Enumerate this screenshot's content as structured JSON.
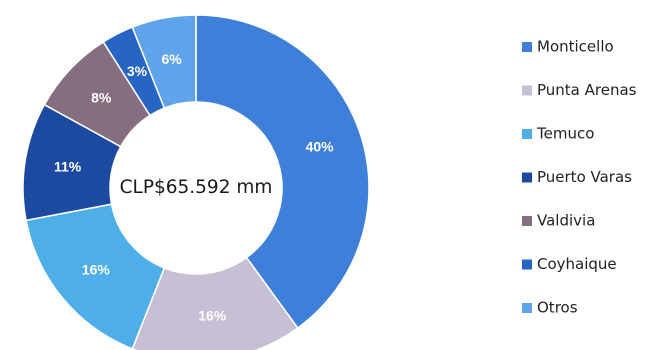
{
  "chart_data": {
    "type": "pie",
    "donut": true,
    "center_label": "CLP$65.592 mm",
    "legend_position": "right",
    "slices": [
      {
        "label": "Monticello",
        "value": 40,
        "value_label": "40%",
        "color": "#3d7fd9"
      },
      {
        "label": "Punta Arenas",
        "value": 16,
        "value_label": "16%",
        "color": "#c7bfd4"
      },
      {
        "label": "Temuco",
        "value": 16,
        "value_label": "16%",
        "color": "#4eaee7"
      },
      {
        "label": "Puerto Varas",
        "value": 11,
        "value_label": "11%",
        "color": "#1c4aa0"
      },
      {
        "label": "Valdivia",
        "value": 8,
        "value_label": "8%",
        "color": "#856e80"
      },
      {
        "label": "Coyhaique",
        "value": 3,
        "value_label": "3%",
        "color": "#2765c4"
      },
      {
        "label": "Otros",
        "value": 6,
        "value_label": "6%",
        "color": "#5fa3ea"
      }
    ]
  }
}
